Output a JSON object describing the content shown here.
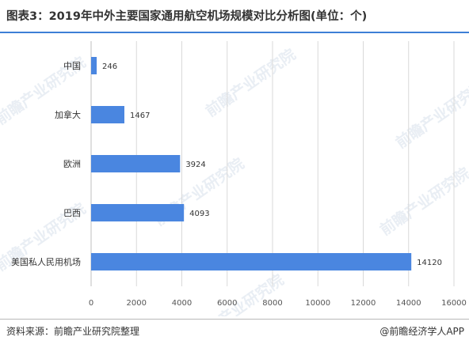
{
  "header": {
    "title": "图表3：2019年中外主要国家通用航空机场规模对比分析图(单位：个)"
  },
  "footer": {
    "source": "资料来源：前瞻产业研究院整理",
    "brand": "@前瞻经济学人APP"
  },
  "watermark": {
    "text": "前瞻产业研究院"
  },
  "chart_data": {
    "type": "bar",
    "orientation": "horizontal",
    "categories": [
      "中国",
      "加拿大",
      "欧洲",
      "巴西",
      "美国私人民用机场"
    ],
    "values": [
      246,
      1467,
      3924,
      4093,
      14120
    ],
    "value_labels": [
      "246",
      "1467",
      "3924",
      "4093",
      "14120"
    ],
    "xlim": [
      0,
      16000
    ],
    "x_ticks": [
      0,
      2000,
      4000,
      6000,
      8000,
      10000,
      12000,
      14000,
      16000
    ],
    "x_tick_labels": [
      "0",
      "2000",
      "4000",
      "6000",
      "8000",
      "10000",
      "12000",
      "14000",
      "16000"
    ],
    "grid": "vertical",
    "bar_color": "#4a86e0",
    "grid_color": "#d9d9d9"
  }
}
